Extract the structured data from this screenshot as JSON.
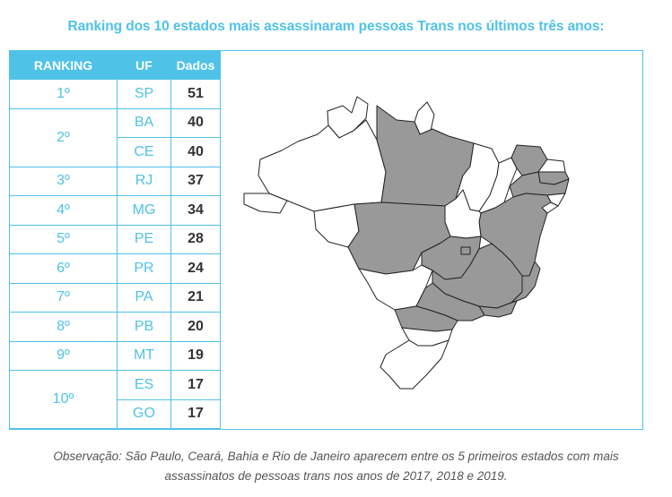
{
  "chart_data": {
    "type": "table",
    "title": "Ranking dos 10 estados mais assassinaram pessoas Trans nos últimos três anos:",
    "columns": [
      "RANKING",
      "UF",
      "Dados"
    ],
    "rows": [
      {
        "rank": "1º",
        "uf": "SP",
        "value": 51
      },
      {
        "rank": "2º",
        "uf": "BA",
        "value": 40
      },
      {
        "rank": "2º",
        "uf": "CE",
        "value": 40
      },
      {
        "rank": "3º",
        "uf": "RJ",
        "value": 37
      },
      {
        "rank": "4º",
        "uf": "MG",
        "value": 34
      },
      {
        "rank": "5º",
        "uf": "PE",
        "value": 28
      },
      {
        "rank": "6º",
        "uf": "PR",
        "value": 24
      },
      {
        "rank": "7º",
        "uf": "PA",
        "value": 21
      },
      {
        "rank": "8º",
        "uf": "PB",
        "value": 20
      },
      {
        "rank": "9º",
        "uf": "MT",
        "value": 19
      },
      {
        "rank": "10º",
        "uf": "ES",
        "value": 17
      },
      {
        "rank": "10º",
        "uf": "GO",
        "value": 17
      }
    ],
    "highlighted_states": [
      "SP",
      "BA",
      "CE",
      "RJ",
      "MG",
      "PE",
      "PR",
      "PA",
      "PB",
      "MT",
      "ES",
      "GO",
      "DF"
    ],
    "colors": {
      "accent": "#4fc2e8",
      "highlight": "#999999",
      "map_bg": "#ffffff"
    }
  },
  "note": {
    "line1": "Observação: São Paulo, Ceará, Bahia e Rio de Janeiro aparecem entre os 5 primeiros estados com mais",
    "line2": "assassinatos de pessoas trans nos anos de 2017, 2018 e 2019."
  }
}
